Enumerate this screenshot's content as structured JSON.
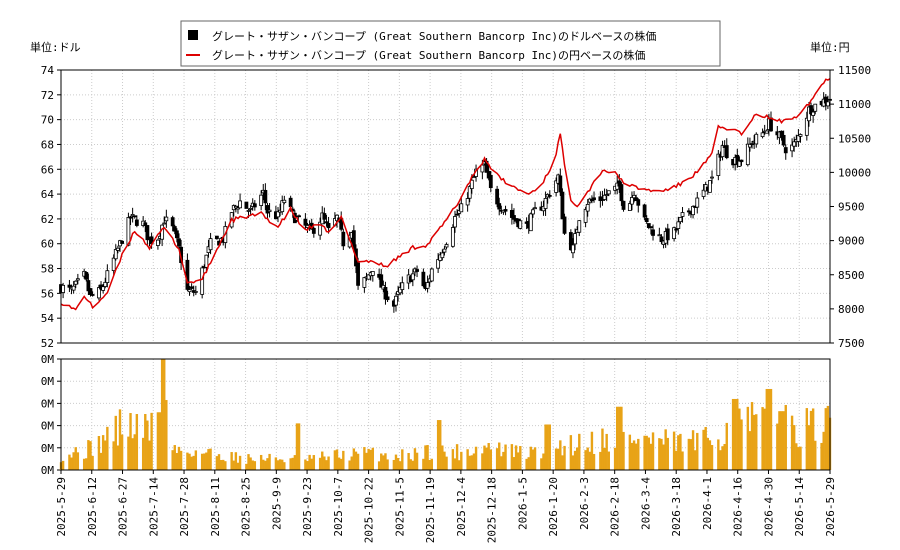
{
  "chart_data": {
    "type": "candlestick-line-bar",
    "legend": {
      "position": "top-center",
      "entries": [
        {
          "label": "グレート・サザン・バンコープ (Great Southern Bancorp Inc)のドルベースの株価",
          "color": "#000000",
          "marker": "square"
        },
        {
          "label": "グレート・サザン・バンコープ (Great Southern Bancorp Inc)の円ベースの株価",
          "color": "#dd0000",
          "marker": "line"
        }
      ]
    },
    "left_axis": {
      "unit_label": "単位:ドル",
      "ylim": [
        52,
        74
      ],
      "ticks": [
        52,
        54,
        56,
        58,
        60,
        62,
        64,
        66,
        68,
        70,
        72,
        74
      ]
    },
    "right_axis": {
      "unit_label": "単位:円",
      "ylim": [
        7500,
        11500
      ],
      "ticks": [
        7500,
        8000,
        8500,
        9000,
        9500,
        10000,
        10500,
        11000,
        11500
      ]
    },
    "volume_axis": {
      "ticks": [
        "0M",
        "0M",
        "0M",
        "0M",
        "0M",
        "0M"
      ]
    },
    "x_axis": {
      "start": "2025-05-29",
      "end": "2026-05-29",
      "tick_labels": [
        "2025-5-29",
        "2025-6-12",
        "2025-6-27",
        "2025-7-14",
        "2025-7-28",
        "2025-8-11",
        "2025-8-25",
        "2025-9-9",
        "2025-9-23",
        "2025-10-7",
        "2025-10-22",
        "2025-11-5",
        "2025-11-19",
        "2025-12-4",
        "2025-12-18",
        "2026-1-5",
        "2026-1-20",
        "2026-2-3",
        "2026-2-18",
        "2026-3-4",
        "2026-3-18",
        "2026-4-1",
        "2026-4-16",
        "2026-4-30",
        "2026-5-14",
        "2026-5-29"
      ]
    },
    "usd_close_keypoints": [
      [
        "2025-05-29",
        56.5
      ],
      [
        "2025-06-03",
        56.2
      ],
      [
        "2025-06-09",
        57.4
      ],
      [
        "2025-06-12",
        55.7
      ],
      [
        "2025-06-17",
        56.2
      ],
      [
        "2025-06-22",
        58.3
      ],
      [
        "2025-06-27",
        60.4
      ],
      [
        "2025-07-01",
        62.1
      ],
      [
        "2025-07-07",
        61.6
      ],
      [
        "2025-07-10",
        60.2
      ],
      [
        "2025-07-14",
        60.5
      ],
      [
        "2025-07-17",
        62.0
      ],
      [
        "2025-07-21",
        61.2
      ],
      [
        "2025-07-24",
        59.6
      ],
      [
        "2025-07-28",
        56.2
      ],
      [
        "2025-08-01",
        56.1
      ],
      [
        "2025-08-05",
        58.4
      ],
      [
        "2025-08-08",
        60.0
      ],
      [
        "2025-08-14",
        60.4
      ],
      [
        "2025-08-18",
        62.6
      ],
      [
        "2025-08-22",
        63.4
      ],
      [
        "2025-08-27",
        62.6
      ],
      [
        "2025-09-02",
        64.1
      ],
      [
        "2025-09-04",
        62.6
      ],
      [
        "2025-09-09",
        62.2
      ],
      [
        "2025-09-12",
        63.6
      ],
      [
        "2025-09-16",
        62.3
      ],
      [
        "2025-09-21",
        61.5
      ],
      [
        "2025-09-25",
        61.0
      ],
      [
        "2025-09-30",
        62.2
      ],
      [
        "2025-10-03",
        61.0
      ],
      [
        "2025-10-07",
        62.1
      ],
      [
        "2025-10-10",
        60.1
      ],
      [
        "2025-10-14",
        61.3
      ],
      [
        "2025-10-17",
        56.4
      ],
      [
        "2025-10-21",
        57.2
      ],
      [
        "2025-10-24",
        58.1
      ],
      [
        "2025-10-29",
        56.2
      ],
      [
        "2025-11-03",
        55.0
      ],
      [
        "2025-11-06",
        56.3
      ],
      [
        "2025-11-10",
        57.2
      ],
      [
        "2025-11-14",
        57.8
      ],
      [
        "2025-11-18",
        56.2
      ],
      [
        "2025-11-21",
        57.9
      ],
      [
        "2025-11-25",
        59.2
      ],
      [
        "2025-11-28",
        60.3
      ],
      [
        "2025-12-02",
        62.1
      ],
      [
        "2025-12-05",
        62.8
      ],
      [
        "2025-12-09",
        64.4
      ],
      [
        "2025-12-12",
        65.8
      ],
      [
        "2025-12-16",
        66.3
      ],
      [
        "2025-12-19",
        64.3
      ],
      [
        "2025-12-23",
        63.2
      ],
      [
        "2025-12-30",
        62.0
      ],
      [
        "2026-01-05",
        61.4
      ],
      [
        "2026-01-09",
        62.6
      ],
      [
        "2026-01-13",
        63.2
      ],
      [
        "2026-01-16",
        64.2
      ],
      [
        "2026-01-20",
        65.4
      ],
      [
        "2026-01-23",
        60.8
      ],
      [
        "2026-01-27",
        59.6
      ],
      [
        "2026-01-30",
        62.2
      ],
      [
        "2026-02-03",
        63.4
      ],
      [
        "2026-02-09",
        63.6
      ],
      [
        "2026-02-13",
        64.1
      ],
      [
        "2026-02-18",
        64.6
      ],
      [
        "2026-02-21",
        62.4
      ],
      [
        "2026-02-25",
        64.3
      ],
      [
        "2026-03-02",
        61.8
      ],
      [
        "2026-03-05",
        61.2
      ],
      [
        "2026-03-10",
        60.4
      ],
      [
        "2026-03-16",
        60.9
      ],
      [
        "2026-03-20",
        62.1
      ],
      [
        "2026-03-26",
        63.2
      ],
      [
        "2026-03-31",
        64.4
      ],
      [
        "2026-04-03",
        65.2
      ],
      [
        "2026-04-08",
        67.9
      ],
      [
        "2026-04-12",
        66.8
      ],
      [
        "2026-04-17",
        66.8
      ],
      [
        "2026-04-22",
        68.2
      ],
      [
        "2026-04-27",
        68.9
      ],
      [
        "2026-04-30",
        69.7
      ],
      [
        "2026-05-05",
        68.6
      ],
      [
        "2026-05-09",
        67.4
      ],
      [
        "2026-05-13",
        68.2
      ],
      [
        "2026-05-19",
        70.8
      ],
      [
        "2026-05-24",
        71.4
      ],
      [
        "2026-05-29",
        71.7
      ]
    ],
    "jpy_close_keypoints": [
      [
        "2025-05-29",
        8100
      ],
      [
        "2025-06-05",
        7980
      ],
      [
        "2025-06-09",
        8200
      ],
      [
        "2025-06-13",
        8020
      ],
      [
        "2025-06-20",
        8240
      ],
      [
        "2025-06-27",
        8780
      ],
      [
        "2025-07-03",
        9150
      ],
      [
        "2025-07-10",
        8900
      ],
      [
        "2025-07-17",
        9190
      ],
      [
        "2025-07-24",
        8880
      ],
      [
        "2025-07-28",
        8380
      ],
      [
        "2025-08-04",
        8430
      ],
      [
        "2025-08-11",
        8870
      ],
      [
        "2025-08-18",
        9300
      ],
      [
        "2025-08-25",
        9350
      ],
      [
        "2025-09-01",
        9390
      ],
      [
        "2025-09-09",
        9200
      ],
      [
        "2025-09-15",
        9460
      ],
      [
        "2025-09-21",
        9150
      ],
      [
        "2025-09-28",
        9230
      ],
      [
        "2025-10-04",
        9120
      ],
      [
        "2025-10-09",
        9340
      ],
      [
        "2025-10-17",
        8700
      ],
      [
        "2025-10-24",
        8700
      ],
      [
        "2025-10-30",
        8620
      ],
      [
        "2025-11-05",
        8750
      ],
      [
        "2025-11-12",
        8900
      ],
      [
        "2025-11-19",
        8940
      ],
      [
        "2025-11-27",
        9260
      ],
      [
        "2025-12-04",
        9580
      ],
      [
        "2025-12-10",
        9930
      ],
      [
        "2025-12-16",
        10200
      ],
      [
        "2025-12-23",
        9920
      ],
      [
        "2025-12-30",
        9780
      ],
      [
        "2026-01-06",
        9680
      ],
      [
        "2026-01-12",
        9820
      ],
      [
        "2026-01-18",
        10150
      ],
      [
        "2026-01-21",
        10560
      ],
      [
        "2026-01-25",
        9640
      ],
      [
        "2026-01-29",
        9520
      ],
      [
        "2026-02-04",
        9760
      ],
      [
        "2026-02-10",
        10040
      ],
      [
        "2026-02-16",
        9980
      ],
      [
        "2026-02-22",
        9810
      ],
      [
        "2026-03-02",
        9750
      ],
      [
        "2026-03-09",
        9720
      ],
      [
        "2026-03-16",
        9780
      ],
      [
        "2026-03-22",
        9880
      ],
      [
        "2026-03-28",
        10040
      ],
      [
        "2026-04-03",
        10260
      ],
      [
        "2026-04-06",
        10660
      ],
      [
        "2026-04-12",
        10640
      ],
      [
        "2026-04-18",
        10560
      ],
      [
        "2026-04-24",
        10860
      ],
      [
        "2026-05-01",
        10790
      ],
      [
        "2026-05-07",
        10740
      ],
      [
        "2026-05-13",
        10830
      ],
      [
        "2026-05-20",
        11050
      ],
      [
        "2026-05-25",
        11290
      ],
      [
        "2026-05-29",
        11400
      ]
    ],
    "volume": {
      "color": "#e8a317",
      "relative_scale": 1.0,
      "relative_keypoints": [
        [
          "2025-05-29",
          0.14
        ],
        [
          "2025-06-12",
          0.2
        ],
        [
          "2025-06-27",
          0.42
        ],
        [
          "2025-07-10",
          0.38
        ],
        [
          "2025-07-16",
          1.0
        ],
        [
          "2025-07-20",
          0.2
        ],
        [
          "2025-08-11",
          0.15
        ],
        [
          "2025-08-25",
          0.11
        ],
        [
          "2025-09-09",
          0.11
        ],
        [
          "2025-09-23",
          0.1
        ],
        [
          "2025-10-07",
          0.14
        ],
        [
          "2025-10-22",
          0.16
        ],
        [
          "2025-11-05",
          0.13
        ],
        [
          "2025-11-19",
          0.18
        ],
        [
          "2025-12-04",
          0.17
        ],
        [
          "2025-12-18",
          0.22
        ],
        [
          "2026-01-05",
          0.15
        ],
        [
          "2026-01-20",
          0.23
        ],
        [
          "2026-02-03",
          0.27
        ],
        [
          "2026-02-18",
          0.31
        ],
        [
          "2026-03-04",
          0.29
        ],
        [
          "2026-03-18",
          0.25
        ],
        [
          "2026-04-01",
          0.28
        ],
        [
          "2026-04-16",
          0.44
        ],
        [
          "2026-04-30",
          0.46
        ],
        [
          "2026-05-14",
          0.4
        ],
        [
          "2026-05-29",
          0.42
        ]
      ],
      "spikes": [
        [
          "2025-07-16",
          1.0
        ],
        [
          "2025-07-14",
          0.52
        ],
        [
          "2025-09-19",
          0.42
        ],
        [
          "2025-11-24",
          0.45
        ],
        [
          "2026-01-15",
          0.41
        ],
        [
          "2026-02-18",
          0.57
        ],
        [
          "2026-04-14",
          0.64
        ],
        [
          "2026-04-30",
          0.73
        ],
        [
          "2026-05-06",
          0.53
        ]
      ]
    }
  }
}
